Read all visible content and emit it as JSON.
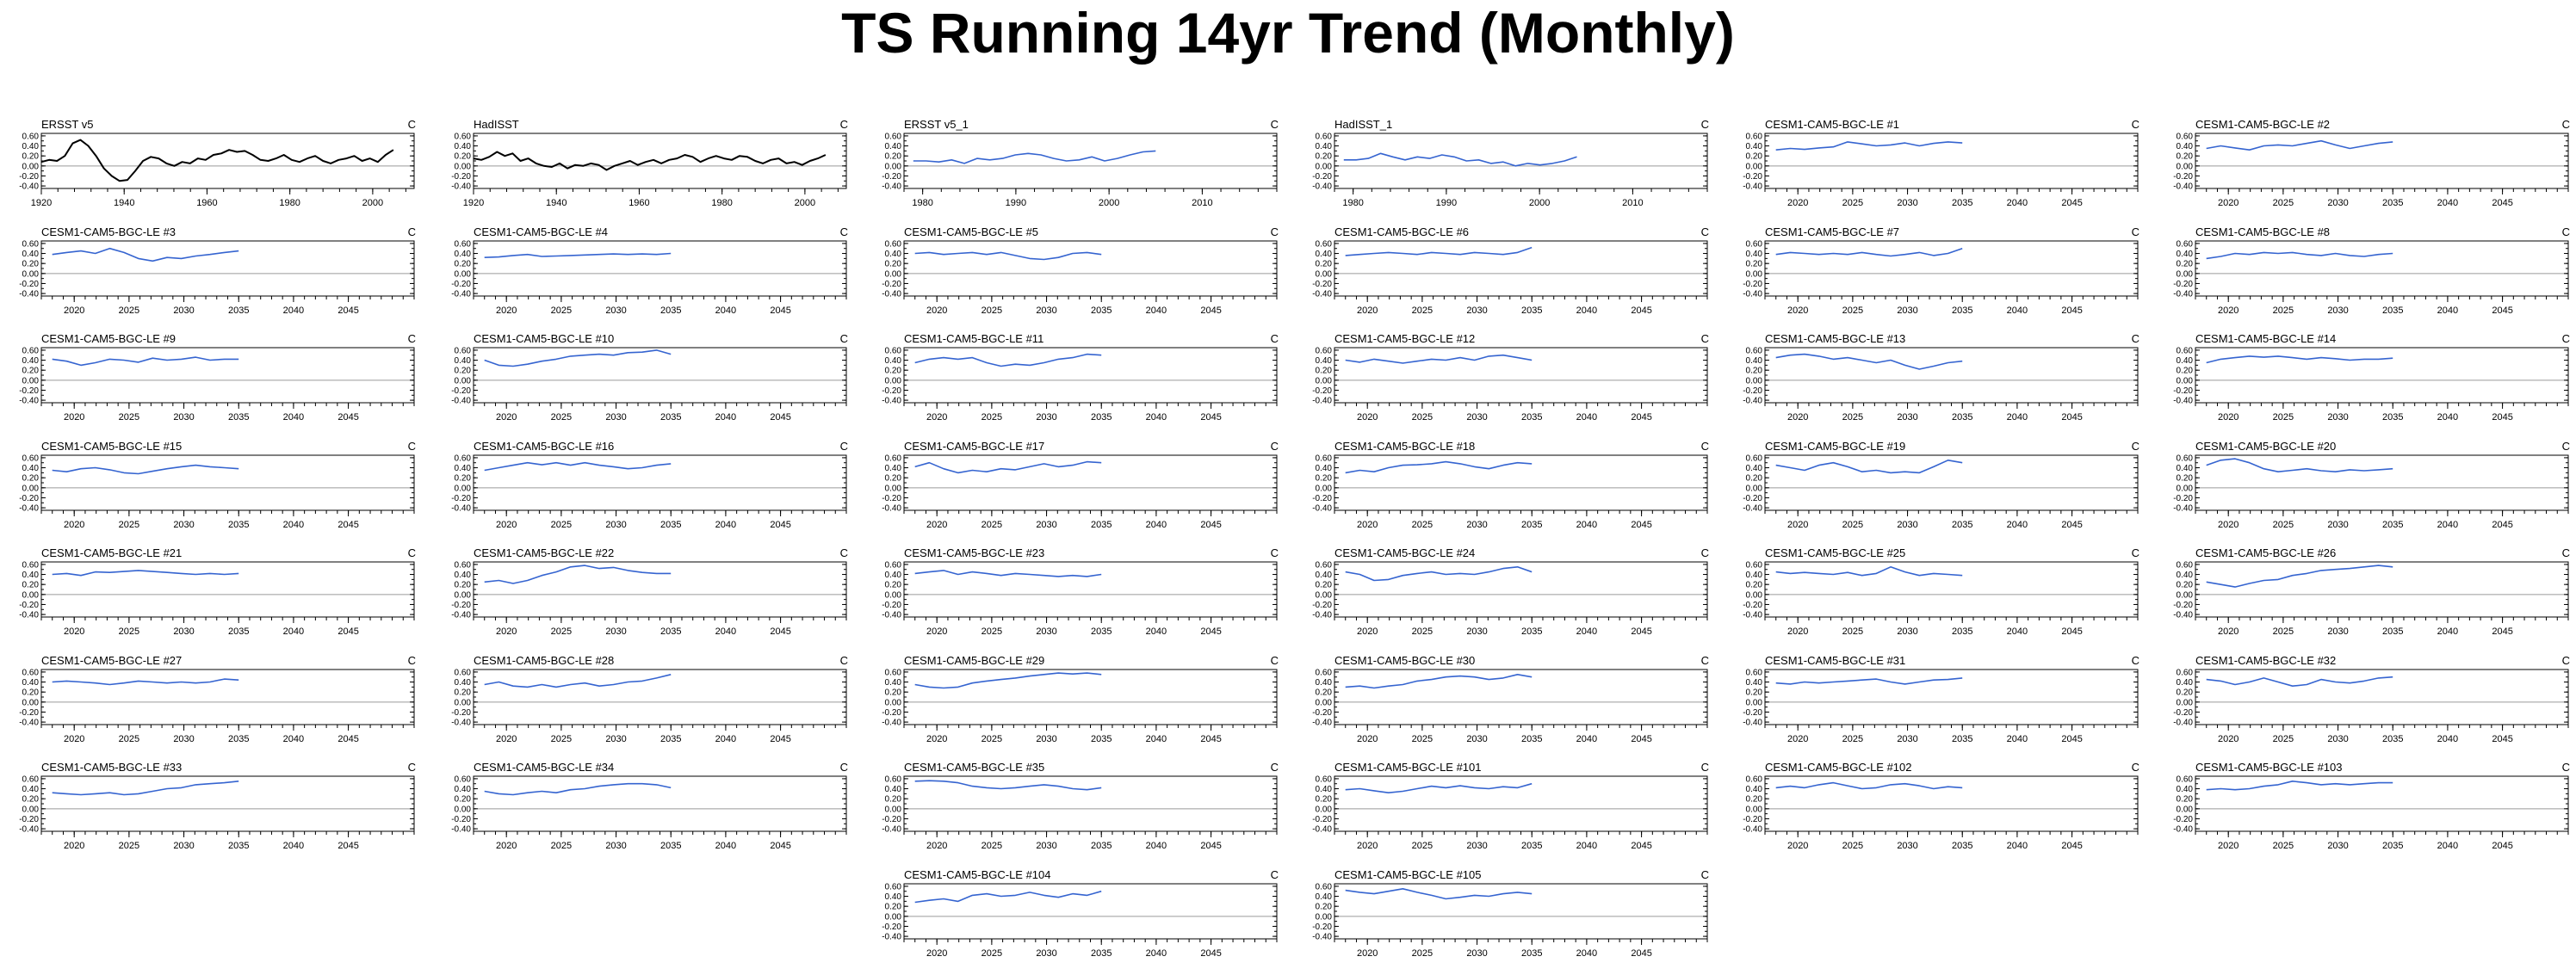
{
  "title": "TS Running 14yr Trend (Monthly)",
  "chart_data": {
    "type": "line",
    "units": "C",
    "y_ticks": [
      "0.60",
      "0.40",
      "0.20",
      "0.00",
      "-0.20",
      "-0.40"
    ],
    "ylim": [
      -0.45,
      0.65
    ],
    "reference_line": 0,
    "panels": [
      {
        "name": "ERSST v5",
        "color": "#000000",
        "xlim": [
          1920,
          2010
        ],
        "xticks": [
          1920,
          1940,
          1960,
          1980,
          2000
        ],
        "x_start": 1920,
        "x_end": 2005,
        "y": [
          0.08,
          0.12,
          0.1,
          0.2,
          0.45,
          0.52,
          0.4,
          0.2,
          -0.05,
          -0.2,
          -0.3,
          -0.28,
          -0.1,
          0.1,
          0.18,
          0.15,
          0.05,
          0.0,
          0.08,
          0.05,
          0.15,
          0.12,
          0.22,
          0.25,
          0.32,
          0.28,
          0.3,
          0.22,
          0.12,
          0.1,
          0.15,
          0.22,
          0.12,
          0.08,
          0.15,
          0.2,
          0.1,
          0.05,
          0.12,
          0.15,
          0.2,
          0.1,
          0.15,
          0.08,
          0.22,
          0.32
        ]
      },
      {
        "name": "HadISST",
        "color": "#000000",
        "xlim": [
          1920,
          2010
        ],
        "xticks": [
          1920,
          1940,
          1960,
          1980,
          2000
        ],
        "x_start": 1920,
        "x_end": 2005,
        "y": [
          0.15,
          0.12,
          0.18,
          0.28,
          0.2,
          0.25,
          0.1,
          0.15,
          0.05,
          0.0,
          -0.02,
          0.05,
          -0.05,
          0.02,
          0.0,
          0.05,
          0.02,
          -0.08,
          0.0,
          0.05,
          0.1,
          0.02,
          0.08,
          0.12,
          0.05,
          0.12,
          0.15,
          0.22,
          0.18,
          0.08,
          0.15,
          0.2,
          0.15,
          0.12,
          0.2,
          0.18,
          0.1,
          0.05,
          0.12,
          0.15,
          0.05,
          0.08,
          0.02,
          0.1,
          0.15,
          0.22
        ]
      },
      {
        "name": "ERSST v5_1",
        "color": "#3564d0",
        "xlim": [
          1978,
          2018
        ],
        "xticks": [
          1980,
          1990,
          2000,
          2010
        ],
        "x_start": 1979,
        "x_end": 2005,
        "y": [
          0.1,
          0.1,
          0.08,
          0.12,
          0.05,
          0.15,
          0.12,
          0.15,
          0.22,
          0.25,
          0.22,
          0.15,
          0.1,
          0.12,
          0.18,
          0.1,
          0.15,
          0.22,
          0.28,
          0.3
        ]
      },
      {
        "name": "HadISST_1",
        "color": "#3564d0",
        "xlim": [
          1978,
          2018
        ],
        "xticks": [
          1980,
          1990,
          2000,
          2010
        ],
        "x_start": 1979,
        "x_end": 2004,
        "y": [
          0.12,
          0.12,
          0.15,
          0.25,
          0.18,
          0.12,
          0.18,
          0.15,
          0.22,
          0.18,
          0.1,
          0.12,
          0.05,
          0.08,
          0.0,
          0.05,
          0.02,
          0.05,
          0.1,
          0.18
        ]
      },
      {
        "name": "CESM1-CAM5-BGC-LE #1",
        "y": [
          0.32,
          0.35,
          0.33,
          0.36,
          0.38,
          0.48,
          0.44,
          0.4,
          0.42,
          0.46,
          0.4,
          0.45,
          0.48,
          0.46
        ]
      },
      {
        "name": "CESM1-CAM5-BGC-LE #2",
        "y": [
          0.35,
          0.4,
          0.36,
          0.32,
          0.4,
          0.42,
          0.4,
          0.45,
          0.5,
          0.42,
          0.35,
          0.4,
          0.45,
          0.48
        ]
      },
      {
        "name": "CESM1-CAM5-BGC-LE #3",
        "y": [
          0.38,
          0.42,
          0.45,
          0.4,
          0.5,
          0.42,
          0.3,
          0.25,
          0.32,
          0.3,
          0.35,
          0.38,
          0.42,
          0.45
        ]
      },
      {
        "name": "CESM1-CAM5-BGC-LE #4",
        "y": [
          0.32,
          0.33,
          0.36,
          0.38,
          0.34,
          0.35,
          0.36,
          0.37,
          0.38,
          0.39,
          0.38,
          0.39,
          0.38,
          0.4
        ]
      },
      {
        "name": "CESM1-CAM5-BGC-LE #5",
        "y": [
          0.4,
          0.42,
          0.38,
          0.4,
          0.42,
          0.38,
          0.42,
          0.36,
          0.3,
          0.28,
          0.32,
          0.4,
          0.42,
          0.38
        ]
      },
      {
        "name": "CESM1-CAM5-BGC-LE #6",
        "y": [
          0.36,
          0.38,
          0.4,
          0.42,
          0.4,
          0.38,
          0.42,
          0.4,
          0.38,
          0.42,
          0.4,
          0.38,
          0.42,
          0.52
        ]
      },
      {
        "name": "CESM1-CAM5-BGC-LE #7",
        "y": [
          0.38,
          0.42,
          0.4,
          0.38,
          0.4,
          0.38,
          0.42,
          0.38,
          0.35,
          0.38,
          0.42,
          0.36,
          0.4,
          0.5
        ]
      },
      {
        "name": "CESM1-CAM5-BGC-LE #8",
        "y": [
          0.3,
          0.34,
          0.4,
          0.38,
          0.42,
          0.4,
          0.42,
          0.38,
          0.36,
          0.4,
          0.36,
          0.34,
          0.38,
          0.4
        ]
      },
      {
        "name": "CESM1-CAM5-BGC-LE #9",
        "y": [
          0.42,
          0.38,
          0.3,
          0.35,
          0.42,
          0.4,
          0.36,
          0.44,
          0.4,
          0.42,
          0.46,
          0.4,
          0.42,
          0.42
        ]
      },
      {
        "name": "CESM1-CAM5-BGC-LE #10",
        "y": [
          0.4,
          0.3,
          0.28,
          0.32,
          0.38,
          0.42,
          0.48,
          0.5,
          0.52,
          0.5,
          0.55,
          0.56,
          0.6,
          0.52
        ]
      },
      {
        "name": "CESM1-CAM5-BGC-LE #11",
        "y": [
          0.35,
          0.42,
          0.45,
          0.42,
          0.45,
          0.35,
          0.28,
          0.32,
          0.3,
          0.35,
          0.42,
          0.45,
          0.52,
          0.5
        ]
      },
      {
        "name": "CESM1-CAM5-BGC-LE #12",
        "y": [
          0.4,
          0.36,
          0.42,
          0.38,
          0.34,
          0.38,
          0.42,
          0.4,
          0.45,
          0.4,
          0.48,
          0.5,
          0.45,
          0.4
        ]
      },
      {
        "name": "CESM1-CAM5-BGC-LE #13",
        "y": [
          0.45,
          0.5,
          0.52,
          0.48,
          0.42,
          0.45,
          0.4,
          0.35,
          0.4,
          0.3,
          0.22,
          0.28,
          0.35,
          0.38
        ]
      },
      {
        "name": "CESM1-CAM5-BGC-LE #14",
        "y": [
          0.35,
          0.42,
          0.45,
          0.48,
          0.46,
          0.48,
          0.45,
          0.42,
          0.45,
          0.43,
          0.4,
          0.42,
          0.42,
          0.44
        ]
      },
      {
        "name": "CESM1-CAM5-BGC-LE #15",
        "y": [
          0.35,
          0.32,
          0.38,
          0.4,
          0.36,
          0.3,
          0.28,
          0.33,
          0.38,
          0.42,
          0.45,
          0.42,
          0.4,
          0.38
        ]
      },
      {
        "name": "CESM1-CAM5-BGC-LE #16",
        "y": [
          0.35,
          0.4,
          0.45,
          0.5,
          0.46,
          0.5,
          0.45,
          0.5,
          0.45,
          0.42,
          0.38,
          0.4,
          0.45,
          0.48
        ]
      },
      {
        "name": "CESM1-CAM5-BGC-LE #17",
        "y": [
          0.42,
          0.5,
          0.38,
          0.3,
          0.35,
          0.32,
          0.38,
          0.36,
          0.42,
          0.48,
          0.42,
          0.45,
          0.52,
          0.5
        ]
      },
      {
        "name": "CESM1-CAM5-BGC-LE #18",
        "y": [
          0.3,
          0.35,
          0.32,
          0.4,
          0.45,
          0.46,
          0.48,
          0.52,
          0.48,
          0.42,
          0.38,
          0.45,
          0.5,
          0.48
        ]
      },
      {
        "name": "CESM1-CAM5-BGC-LE #19",
        "y": [
          0.45,
          0.4,
          0.35,
          0.45,
          0.5,
          0.42,
          0.32,
          0.35,
          0.3,
          0.32,
          0.3,
          0.42,
          0.55,
          0.5
        ]
      },
      {
        "name": "CESM1-CAM5-BGC-LE #20",
        "y": [
          0.45,
          0.55,
          0.58,
          0.5,
          0.38,
          0.32,
          0.35,
          0.38,
          0.34,
          0.32,
          0.36,
          0.34,
          0.36,
          0.38
        ]
      },
      {
        "name": "CESM1-CAM5-BGC-LE #21",
        "y": [
          0.4,
          0.42,
          0.38,
          0.45,
          0.44,
          0.46,
          0.48,
          0.46,
          0.44,
          0.42,
          0.4,
          0.42,
          0.4,
          0.42
        ]
      },
      {
        "name": "CESM1-CAM5-BGC-LE #22",
        "y": [
          0.25,
          0.28,
          0.22,
          0.28,
          0.38,
          0.45,
          0.55,
          0.58,
          0.52,
          0.54,
          0.48,
          0.44,
          0.42,
          0.42
        ]
      },
      {
        "name": "CESM1-CAM5-BGC-LE #23",
        "y": [
          0.42,
          0.45,
          0.48,
          0.4,
          0.45,
          0.42,
          0.38,
          0.42,
          0.4,
          0.38,
          0.36,
          0.38,
          0.36,
          0.4
        ]
      },
      {
        "name": "CESM1-CAM5-BGC-LE #24",
        "y": [
          0.45,
          0.4,
          0.28,
          0.3,
          0.38,
          0.42,
          0.45,
          0.4,
          0.42,
          0.4,
          0.45,
          0.52,
          0.55,
          0.45
        ]
      },
      {
        "name": "CESM1-CAM5-BGC-LE #25",
        "y": [
          0.45,
          0.42,
          0.44,
          0.42,
          0.4,
          0.44,
          0.38,
          0.42,
          0.55,
          0.45,
          0.38,
          0.42,
          0.4,
          0.38
        ]
      },
      {
        "name": "CESM1-CAM5-BGC-LE #26",
        "y": [
          0.25,
          0.2,
          0.15,
          0.22,
          0.28,
          0.3,
          0.38,
          0.42,
          0.48,
          0.5,
          0.52,
          0.55,
          0.58,
          0.55
        ]
      },
      {
        "name": "CESM1-CAM5-BGC-LE #27",
        "y": [
          0.4,
          0.42,
          0.4,
          0.38,
          0.35,
          0.38,
          0.42,
          0.4,
          0.38,
          0.4,
          0.38,
          0.4,
          0.46,
          0.44
        ]
      },
      {
        "name": "CESM1-CAM5-BGC-LE #28",
        "y": [
          0.35,
          0.4,
          0.32,
          0.3,
          0.35,
          0.3,
          0.35,
          0.38,
          0.32,
          0.35,
          0.4,
          0.42,
          0.48,
          0.55
        ]
      },
      {
        "name": "CESM1-CAM5-BGC-LE #29",
        "y": [
          0.35,
          0.3,
          0.28,
          0.3,
          0.38,
          0.42,
          0.45,
          0.48,
          0.52,
          0.55,
          0.58,
          0.56,
          0.58,
          0.55
        ]
      },
      {
        "name": "CESM1-CAM5-BGC-LE #30",
        "y": [
          0.3,
          0.32,
          0.28,
          0.32,
          0.35,
          0.42,
          0.45,
          0.5,
          0.52,
          0.5,
          0.45,
          0.48,
          0.55,
          0.5
        ]
      },
      {
        "name": "CESM1-CAM5-BGC-LE #31",
        "y": [
          0.38,
          0.36,
          0.4,
          0.38,
          0.4,
          0.42,
          0.44,
          0.46,
          0.4,
          0.36,
          0.4,
          0.44,
          0.45,
          0.48
        ]
      },
      {
        "name": "CESM1-CAM5-BGC-LE #32",
        "y": [
          0.45,
          0.42,
          0.35,
          0.4,
          0.48,
          0.4,
          0.32,
          0.35,
          0.45,
          0.4,
          0.38,
          0.42,
          0.48,
          0.5
        ]
      },
      {
        "name": "CESM1-CAM5-BGC-LE #33",
        "y": [
          0.32,
          0.3,
          0.28,
          0.3,
          0.32,
          0.28,
          0.3,
          0.35,
          0.4,
          0.42,
          0.48,
          0.5,
          0.52,
          0.55
        ]
      },
      {
        "name": "CESM1-CAM5-BGC-LE #34",
        "y": [
          0.35,
          0.3,
          0.28,
          0.32,
          0.35,
          0.32,
          0.38,
          0.4,
          0.45,
          0.48,
          0.5,
          0.5,
          0.48,
          0.42
        ]
      },
      {
        "name": "CESM1-CAM5-BGC-LE #35",
        "y": [
          0.55,
          0.56,
          0.55,
          0.52,
          0.45,
          0.42,
          0.4,
          0.42,
          0.45,
          0.48,
          0.45,
          0.4,
          0.38,
          0.42
        ]
      },
      {
        "name": "CESM1-CAM5-BGC-LE #101",
        "y": [
          0.38,
          0.4,
          0.36,
          0.32,
          0.35,
          0.4,
          0.45,
          0.42,
          0.46,
          0.42,
          0.4,
          0.44,
          0.42,
          0.5
        ]
      },
      {
        "name": "CESM1-CAM5-BGC-LE #102",
        "y": [
          0.42,
          0.45,
          0.42,
          0.48,
          0.52,
          0.46,
          0.4,
          0.42,
          0.48,
          0.5,
          0.46,
          0.4,
          0.44,
          0.42
        ]
      },
      {
        "name": "CESM1-CAM5-BGC-LE #103",
        "y": [
          0.38,
          0.4,
          0.38,
          0.4,
          0.45,
          0.48,
          0.55,
          0.52,
          0.48,
          0.5,
          0.48,
          0.5,
          0.52,
          0.52
        ]
      },
      {
        "name": "CESM1-CAM5-BGC-LE #104",
        "y": [
          0.28,
          0.32,
          0.35,
          0.3,
          0.42,
          0.45,
          0.4,
          0.42,
          0.48,
          0.42,
          0.38,
          0.45,
          0.42,
          0.5
        ]
      },
      {
        "name": "CESM1-CAM5-BGC-LE #105",
        "y": [
          0.52,
          0.48,
          0.45,
          0.5,
          0.55,
          0.48,
          0.42,
          0.35,
          0.38,
          0.42,
          0.4,
          0.45,
          0.48,
          0.45
        ]
      }
    ],
    "model_defaults": {
      "color": "#3564d0",
      "xlim": [
        2017,
        2051
      ],
      "xticks": [
        2020,
        2025,
        2030,
        2035,
        2040,
        2045
      ],
      "x_start": 2018,
      "x_end": 2035
    }
  }
}
